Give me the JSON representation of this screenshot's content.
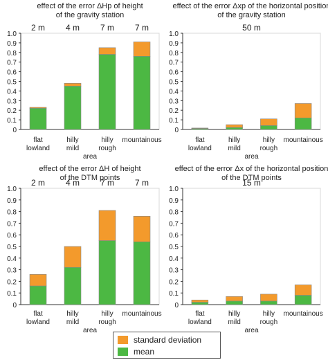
{
  "colors": {
    "std": "#F39A2C",
    "mean": "#4CB843",
    "axis": "#333333",
    "frame": "#d8d8d8"
  },
  "legend": {
    "std_label": "standard deviation",
    "mean_label": "mean"
  },
  "chart_data": [
    {
      "type": "bar",
      "stacked": true,
      "title_lines": [
        "effect of the error ΔH",
        "p",
        " of height",
        "of the gravity station"
      ],
      "title_line1": "effect of the error ΔHp of height",
      "title_line2": "of the gravity station",
      "categories": [
        [
          "flat",
          "lowland"
        ],
        [
          "hilly",
          "mild"
        ],
        [
          "hilly",
          "rough"
        ],
        [
          "mountainous"
        ]
      ],
      "top_labels": [
        "2 m",
        "4 m",
        "7 m",
        "7 m"
      ],
      "xlabel": "area",
      "ylim": [
        0,
        1.0
      ],
      "yticks": [
        "0",
        "0.1",
        "0.2",
        "0.3",
        "0.4",
        "0.5",
        "0.6",
        "0.7",
        "0.8",
        "0.9",
        "1.0"
      ],
      "series": [
        {
          "name": "mean",
          "values": [
            0.22,
            0.45,
            0.78,
            0.76
          ]
        },
        {
          "name": "standard deviation",
          "values": [
            0.01,
            0.03,
            0.07,
            0.15
          ]
        }
      ]
    },
    {
      "type": "bar",
      "stacked": true,
      "title_line1": "effect of the error Δxp of the horizontal position",
      "title_line2": "of the gravity station",
      "categories": [
        [
          "flat",
          "lowland"
        ],
        [
          "hilly",
          "mild"
        ],
        [
          "hilly",
          "rough"
        ],
        [
          "mountainous"
        ]
      ],
      "top_labels": [
        "50 m"
      ],
      "xlabel": "area",
      "ylim": [
        0,
        1.0
      ],
      "yticks": [
        "0",
        "0.1",
        "0.2",
        "0.3",
        "0.4",
        "0.5",
        "0.6",
        "0.7",
        "0.8",
        "0.9",
        "1.0"
      ],
      "series": [
        {
          "name": "mean",
          "values": [
            0.01,
            0.02,
            0.04,
            0.12
          ]
        },
        {
          "name": "standard deviation",
          "values": [
            0.005,
            0.03,
            0.07,
            0.15
          ]
        }
      ]
    },
    {
      "type": "bar",
      "stacked": true,
      "title_line1": "effect of the error ΔH of height",
      "title_line2": "of the DTM points",
      "categories": [
        [
          "flat",
          "lowland"
        ],
        [
          "hilly",
          "mild"
        ],
        [
          "hilly",
          "rough"
        ],
        [
          "mountainous"
        ]
      ],
      "top_labels": [
        "2 m",
        "4 m",
        "7 m",
        "7 m"
      ],
      "xlabel": "area",
      "ylim": [
        0,
        1.0
      ],
      "yticks": [
        "0",
        "0.1",
        "0.2",
        "0.3",
        "0.4",
        "0.5",
        "0.6",
        "0.7",
        "0.8",
        "0.9",
        "1.0"
      ],
      "series": [
        {
          "name": "mean",
          "values": [
            0.16,
            0.32,
            0.55,
            0.54
          ]
        },
        {
          "name": "standard deviation",
          "values": [
            0.1,
            0.18,
            0.26,
            0.22
          ]
        }
      ]
    },
    {
      "type": "bar",
      "stacked": true,
      "title_line1": "effect of the error Δx of the horizontal position",
      "title_line2": "of the DTM points",
      "categories": [
        [
          "flat",
          "lowland"
        ],
        [
          "hilly",
          "mild"
        ],
        [
          "hilly",
          "rough"
        ],
        [
          "mountainous"
        ]
      ],
      "top_labels": [
        "15 m"
      ],
      "xlabel": "area",
      "ylim": [
        0,
        1.0
      ],
      "yticks": [
        "0",
        "0.1",
        "0.2",
        "0.3",
        "0.4",
        "0.5",
        "0.6",
        "0.7",
        "0.8",
        "0.9",
        "1.0"
      ],
      "series": [
        {
          "name": "mean",
          "values": [
            0.02,
            0.03,
            0.03,
            0.08
          ]
        },
        {
          "name": "standard deviation",
          "values": [
            0.02,
            0.04,
            0.06,
            0.09
          ]
        }
      ]
    }
  ]
}
